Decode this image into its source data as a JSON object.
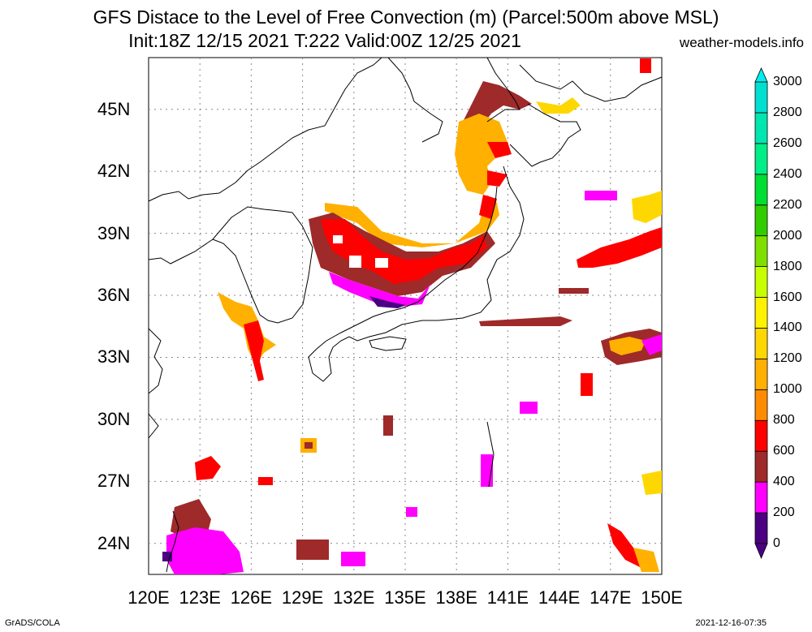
{
  "header": {
    "title_line1": "GFS Distace to the Level of Free Convection (m) (Parcel:500m above MSL)",
    "title_line2": "Init:18Z 12/15 2021 T:222 Valid:00Z 12/25 2021",
    "site": "weather-models.info"
  },
  "axes": {
    "lat_labels": [
      "45N",
      "42N",
      "39N",
      "36N",
      "33N",
      "30N",
      "27N",
      "24N"
    ],
    "lon_labels": [
      "120E",
      "123E",
      "126E",
      "129E",
      "132E",
      "135E",
      "138E",
      "141E",
      "144E",
      "147E",
      "150E"
    ],
    "lon_range": [
      120,
      150
    ],
    "lat_range": [
      22.5,
      47.5
    ]
  },
  "colorbar": {
    "labels": [
      "0",
      "200",
      "400",
      "600",
      "800",
      "1000",
      "1200",
      "1400",
      "1600",
      "1800",
      "2000",
      "2200",
      "2400",
      "2600",
      "2800",
      "3000"
    ],
    "colors": [
      "#4b0082",
      "#ff00ff",
      "#9e2a2a",
      "#ff0000",
      "#ff8c00",
      "#ffb000",
      "#ffd700",
      "#fff200",
      "#c8ff00",
      "#7fe000",
      "#33cc00",
      "#00dd33",
      "#00ee88",
      "#00e6b0",
      "#00e0d0",
      "#00eeee"
    ]
  },
  "footer": {
    "left": "GrADS/COLA",
    "right": "2021-12-16-07:35"
  }
}
